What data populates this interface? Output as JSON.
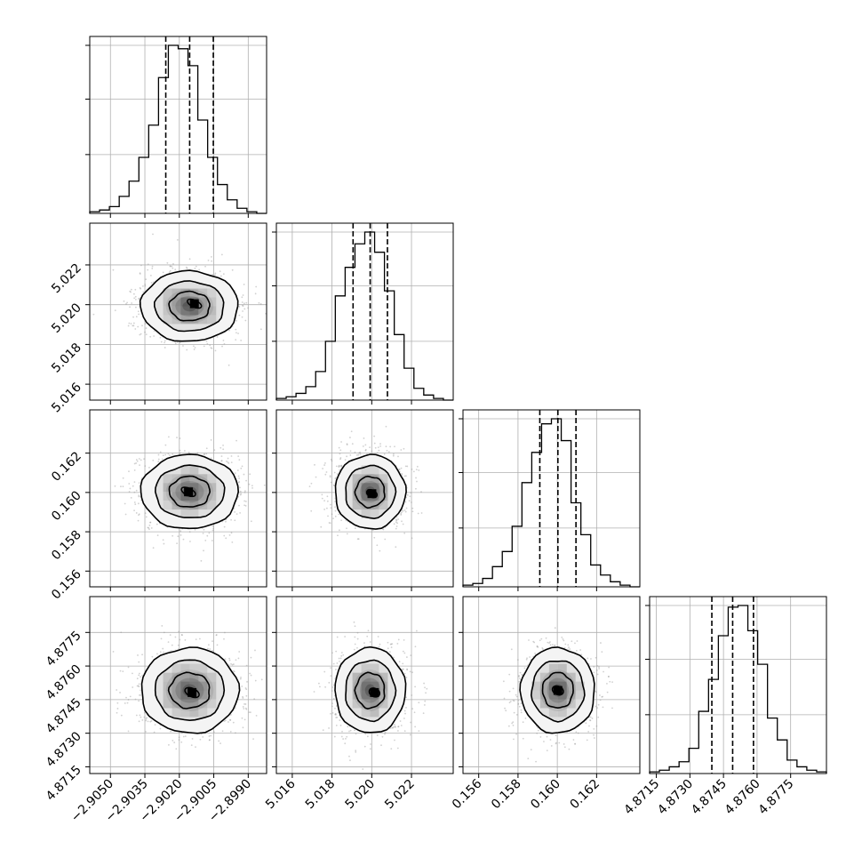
{
  "chart_data": {
    "type": "corner",
    "grid": true,
    "parameters": [
      {
        "range": [
          -2.9059,
          -2.8982
        ],
        "ticks": [
          -2.905,
          -2.9035,
          -2.902,
          -2.9005,
          -2.899
        ],
        "tick_labels": [
          "−2.9050",
          "−2.9035",
          "−2.9020",
          "−2.9005",
          "−2.8990"
        ],
        "quantiles": [
          -2.90259,
          -2.90155,
          -2.90052
        ],
        "hist": [
          1,
          2,
          4,
          10,
          19,
          33,
          52,
          80,
          99,
          97,
          87,
          55,
          33,
          17,
          8,
          3,
          1,
          0
        ]
      },
      {
        "range": [
          5.0152,
          5.0241
        ],
        "ticks": [
          5.016,
          5.018,
          5.02,
          5.022
        ],
        "tick_labels": [
          "5.016",
          "5.018",
          "5.020",
          "5.022"
        ],
        "quantiles": [
          5.01906,
          5.01992,
          5.02079
        ],
        "hist": [
          1,
          2,
          4,
          8,
          17,
          35,
          62,
          79,
          93,
          100,
          88,
          65,
          39,
          19,
          7,
          3,
          1,
          0
        ]
      },
      {
        "range": [
          0.1552,
          0.1642
        ],
        "ticks": [
          0.156,
          0.158,
          0.16,
          0.162
        ],
        "tick_labels": [
          "0.156",
          "0.158",
          "0.160",
          "0.162"
        ],
        "quantiles": [
          0.15911,
          0.16003,
          0.16095
        ],
        "hist": [
          1,
          2,
          5,
          12,
          21,
          36,
          62,
          80,
          97,
          100,
          87,
          50,
          31,
          13,
          7,
          3,
          1,
          0
        ]
      },
      {
        "range": [
          4.8712,
          4.8791
        ],
        "ticks": [
          4.8715,
          4.873,
          4.8745,
          4.876,
          4.8775
        ],
        "tick_labels": [
          "4.8715",
          "4.8730",
          "4.8745",
          "4.8760",
          "4.8775"
        ],
        "quantiles": [
          4.87398,
          4.87491,
          4.87584
        ],
        "hist": [
          1,
          2,
          4,
          7,
          15,
          37,
          56,
          82,
          99,
          100,
          85,
          65,
          33,
          20,
          8,
          4,
          2,
          1
        ]
      }
    ],
    "densities": [
      {
        "x": 0,
        "y": 1,
        "core": [
          0.2,
          -0.15
        ]
      },
      {
        "x": 0,
        "y": 2,
        "core": [
          -0.05,
          0.0
        ]
      },
      {
        "x": 1,
        "y": 2,
        "core": [
          0.1,
          0.1
        ]
      },
      {
        "x": 0,
        "y": 3,
        "core": [
          0.1,
          0.1
        ]
      },
      {
        "x": 1,
        "y": 3,
        "core": [
          0.25,
          0.1
        ]
      },
      {
        "x": 2,
        "y": 3,
        "core": [
          0.0,
          0.0
        ]
      }
    ]
  }
}
